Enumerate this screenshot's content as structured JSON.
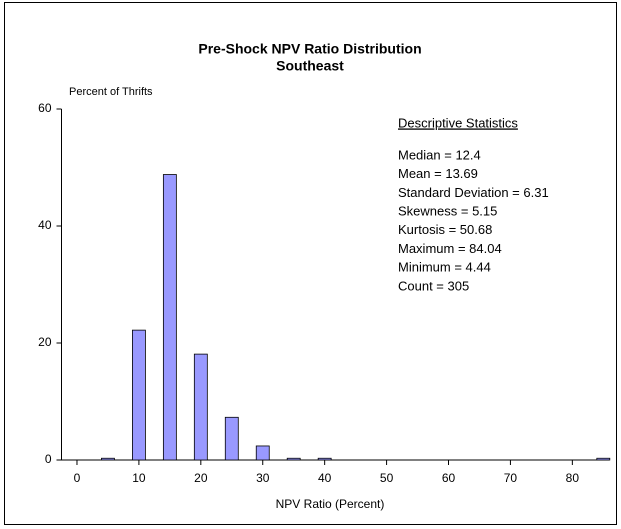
{
  "chart_data": {
    "type": "bar",
    "title": "Pre-Shock NPV Ratio Distribution",
    "subtitle": "Southeast",
    "y_label": "Percent of Thrifts",
    "x_label": "NPV Ratio (Percent)",
    "x": [
      5,
      10,
      15,
      20,
      25,
      30,
      35,
      40,
      85
    ],
    "values": [
      0.3,
      22.2,
      48.8,
      18.1,
      7.3,
      2.4,
      0.3,
      0.3,
      0.3
    ],
    "color": "#9999ff",
    "xlim": [
      -2.5,
      86
    ],
    "xticks": [
      0,
      10,
      20,
      30,
      40,
      50,
      60,
      70,
      80
    ],
    "ylim": [
      0,
      60
    ],
    "yticks": [
      0,
      20,
      40,
      60
    ],
    "grid": false,
    "annotations": {
      "heading": "Descriptive Statistics",
      "lines": [
        "Median = 12.4",
        "Mean = 13.69",
        "Standard Deviation = 6.31",
        "Skewness = 5.15",
        "Kurtosis = 50.68",
        "Maximum = 84.04",
        "Minimum = 4.44",
        "Count = 305"
      ]
    }
  }
}
